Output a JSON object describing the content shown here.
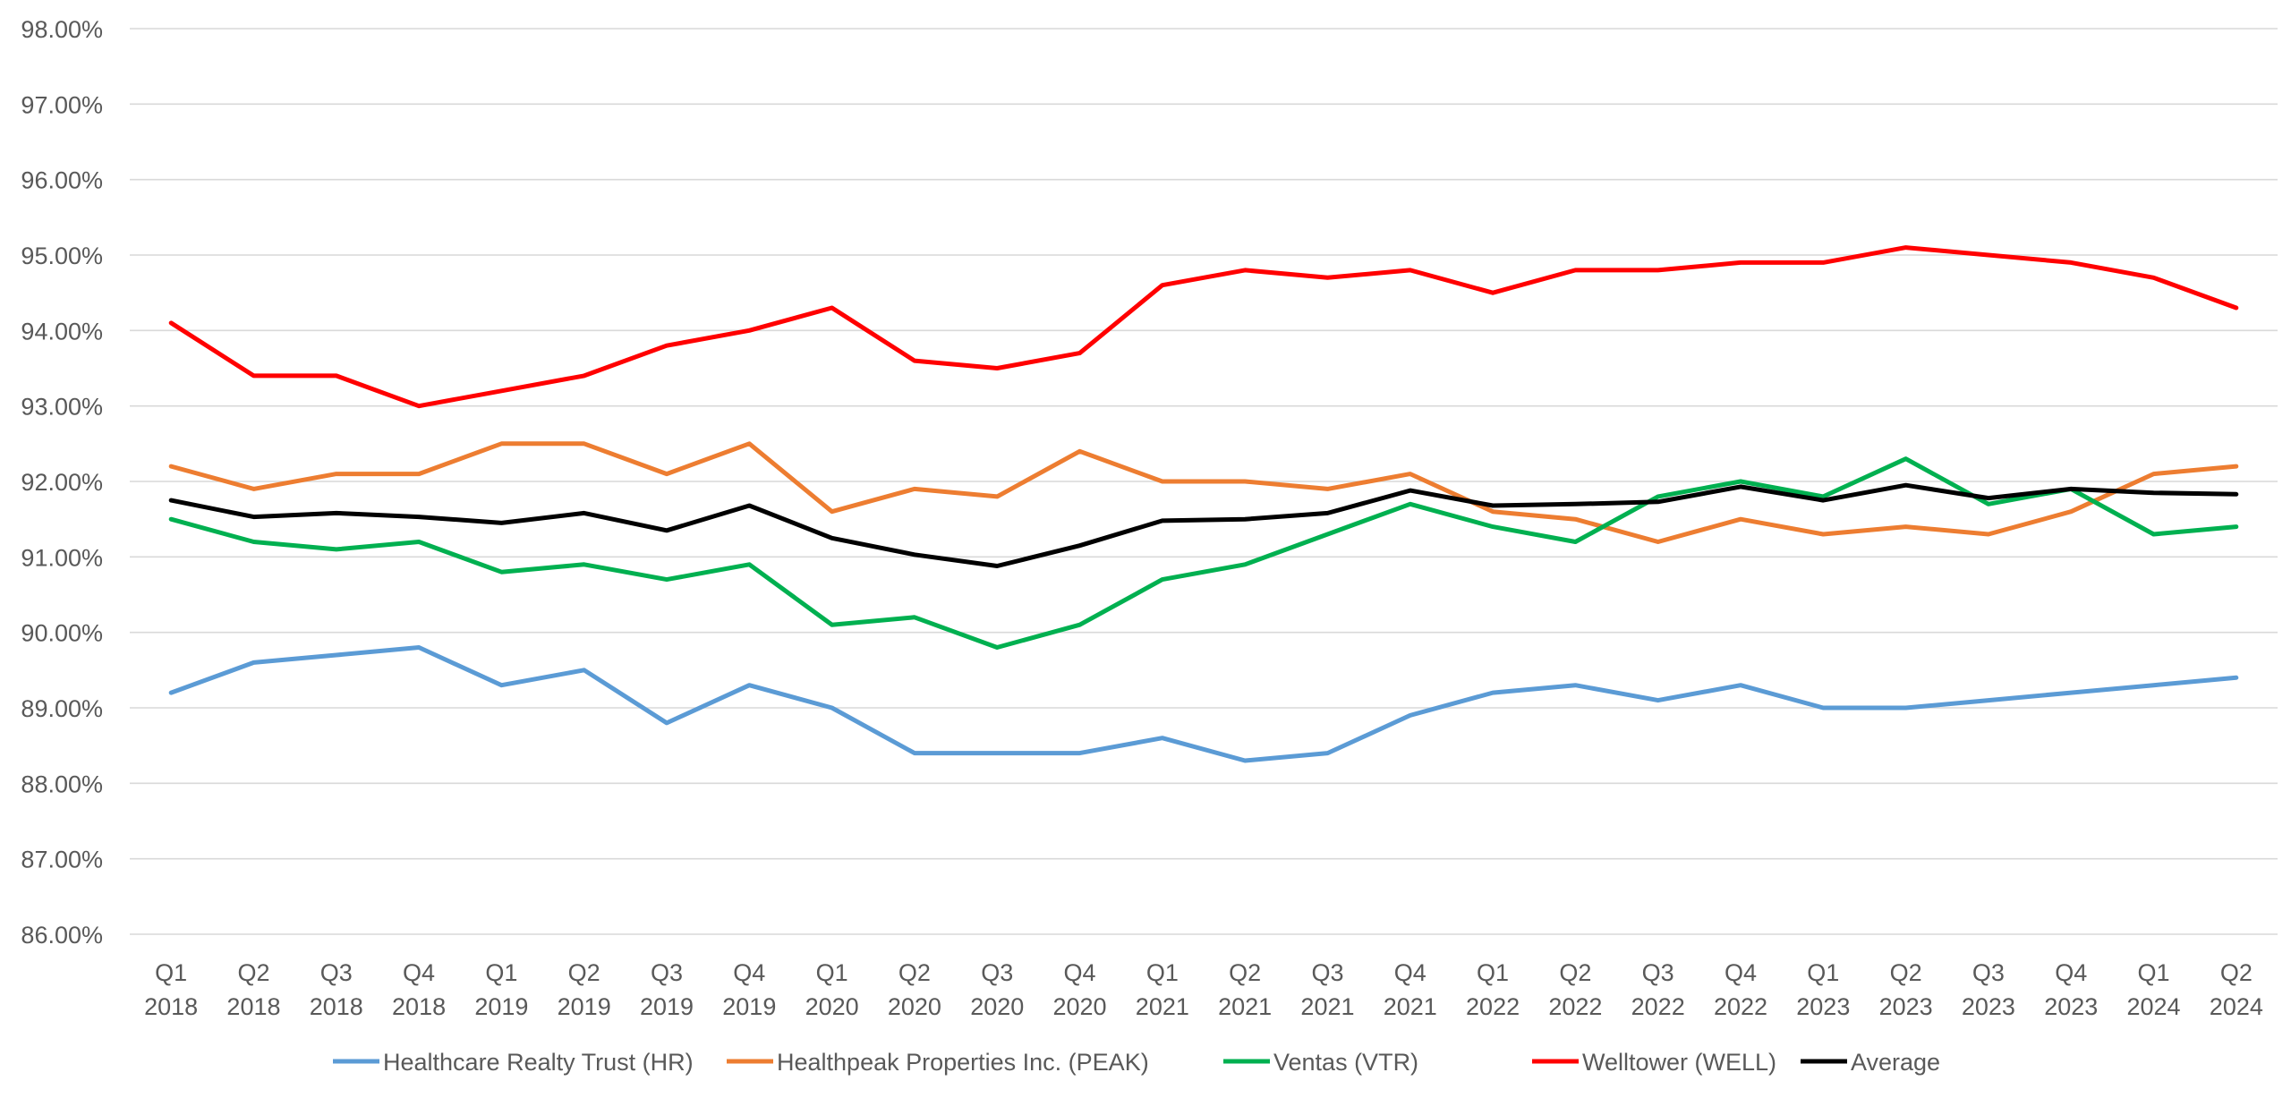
{
  "chart_data": {
    "type": "line",
    "title": "",
    "xlabel": "",
    "ylabel": "",
    "ylim": [
      86,
      98
    ],
    "y_ticks": [
      "98.00%",
      "97.00%",
      "96.00%",
      "95.00%",
      "94.00%",
      "93.00%",
      "92.00%",
      "91.00%",
      "90.00%",
      "89.00%",
      "88.00%",
      "87.00%",
      "86.00%"
    ],
    "y_tick_values": [
      98,
      97,
      96,
      95,
      94,
      93,
      92,
      91,
      90,
      89,
      88,
      87,
      86
    ],
    "grid": true,
    "legend_position": "bottom",
    "categories": [
      [
        "Q1",
        "2018"
      ],
      [
        "Q2",
        "2018"
      ],
      [
        "Q3",
        "2018"
      ],
      [
        "Q4",
        "2018"
      ],
      [
        "Q1",
        "2019"
      ],
      [
        "Q2",
        "2019"
      ],
      [
        "Q3",
        "2019"
      ],
      [
        "Q4",
        "2019"
      ],
      [
        "Q1",
        "2020"
      ],
      [
        "Q2",
        "2020"
      ],
      [
        "Q3",
        "2020"
      ],
      [
        "Q4",
        "2020"
      ],
      [
        "Q1",
        "2021"
      ],
      [
        "Q2",
        "2021"
      ],
      [
        "Q3",
        "2021"
      ],
      [
        "Q4",
        "2021"
      ],
      [
        "Q1",
        "2022"
      ],
      [
        "Q2",
        "2022"
      ],
      [
        "Q3",
        "2022"
      ],
      [
        "Q4",
        "2022"
      ],
      [
        "Q1",
        "2023"
      ],
      [
        "Q2",
        "2023"
      ],
      [
        "Q3",
        "2023"
      ],
      [
        "Q4",
        "2023"
      ],
      [
        "Q1",
        "2024"
      ],
      [
        "Q2",
        "2024"
      ]
    ],
    "series": [
      {
        "name": "Healthcare Realty Trust (HR)",
        "color": "#5b9bd5",
        "values": [
          89.2,
          89.6,
          89.7,
          89.8,
          89.3,
          89.5,
          88.8,
          89.3,
          89.0,
          88.4,
          88.4,
          88.4,
          88.6,
          88.3,
          88.4,
          88.9,
          89.2,
          89.3,
          89.1,
          89.3,
          89.0,
          89.0,
          89.1,
          89.2,
          89.3,
          89.4
        ]
      },
      {
        "name": "Healthpeak Properties Inc. (PEAK)",
        "color": "#ed7d31",
        "values": [
          92.2,
          91.9,
          92.1,
          92.1,
          92.5,
          92.5,
          92.1,
          92.5,
          91.6,
          91.9,
          91.8,
          92.4,
          92.0,
          92.0,
          91.9,
          92.1,
          91.6,
          91.5,
          91.2,
          91.5,
          91.3,
          91.4,
          91.3,
          91.6,
          92.1,
          92.2
        ]
      },
      {
        "name": "Ventas (VTR)",
        "color": "#00b050",
        "values": [
          91.5,
          91.2,
          91.1,
          91.2,
          90.8,
          90.9,
          90.7,
          90.9,
          90.1,
          90.2,
          89.8,
          90.1,
          90.7,
          90.9,
          91.3,
          91.7,
          91.4,
          91.2,
          91.8,
          92.0,
          91.8,
          92.3,
          91.7,
          91.9,
          91.3,
          91.4
        ]
      },
      {
        "name": "Welltower (WELL)",
        "color": "#ff0000",
        "values": [
          94.1,
          93.4,
          93.4,
          93.0,
          93.2,
          93.4,
          93.8,
          94.0,
          94.3,
          93.6,
          93.5,
          93.7,
          94.6,
          94.8,
          94.7,
          94.8,
          94.5,
          94.8,
          94.8,
          94.9,
          94.9,
          95.1,
          95.0,
          94.9,
          94.7,
          94.3
        ]
      },
      {
        "name": "Average",
        "color": "#000000",
        "values": [
          91.75,
          91.53,
          91.58,
          91.53,
          91.45,
          91.58,
          91.35,
          91.68,
          91.25,
          91.03,
          90.88,
          91.15,
          91.48,
          91.5,
          91.58,
          91.88,
          91.68,
          91.7,
          91.73,
          91.93,
          91.75,
          91.95,
          91.78,
          91.9,
          91.85,
          91.83
        ]
      }
    ]
  }
}
